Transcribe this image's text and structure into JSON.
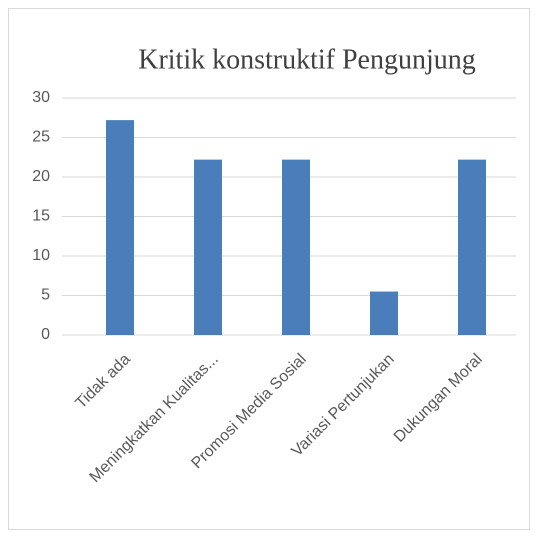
{
  "chart_data": {
    "type": "bar",
    "title": "Kritik konstruktif Pengunjung",
    "categories": [
      "Tidak ada",
      "Meningkatkan Kualitas...",
      "Promosi Media Sosial",
      "Variasi Pertunjukan",
      "Dukungan Moral"
    ],
    "values": [
      27.2,
      22.2,
      22.2,
      5.5,
      22.2
    ],
    "color": "#4a7ebb",
    "ylim": [
      0,
      30
    ],
    "yticks": [
      0,
      5,
      10,
      15,
      20,
      25,
      30
    ],
    "grid": true
  }
}
